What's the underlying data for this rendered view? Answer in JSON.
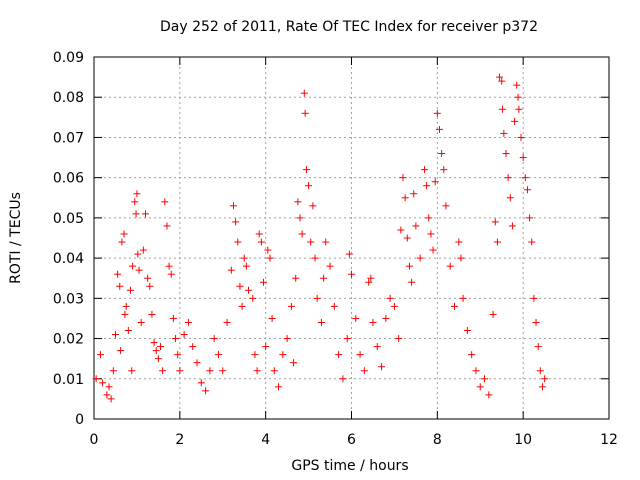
{
  "chart_data": {
    "type": "scatter",
    "title": "Day 252 of 2011, Rate Of TEC Index for receiver p372",
    "xlabel": "GPS time / hours",
    "ylabel": "ROTI / TECUs",
    "xlim": [
      0,
      12
    ],
    "ylim": [
      0,
      0.09
    ],
    "xticks": [
      0,
      2,
      4,
      6,
      8,
      10,
      12
    ],
    "yticks": [
      0,
      0.01,
      0.02,
      0.03,
      0.04,
      0.05,
      0.06,
      0.07,
      0.08,
      0.09
    ],
    "xtick_labels": [
      "0",
      "2",
      "4",
      "6",
      "8",
      "10",
      "12"
    ],
    "ytick_labels": [
      "0",
      "0.01",
      "0.02",
      "0.03",
      "0.04",
      "0.05",
      "0.06",
      "0.07",
      "0.08",
      "0.09"
    ],
    "grid": true,
    "marker": "+",
    "color": "#ff0000",
    "x_range_of_points": [
      0.0,
      10.5
    ],
    "points": [
      [
        0.05,
        0.01
      ],
      [
        0.15,
        0.016
      ],
      [
        0.2,
        0.009
      ],
      [
        0.3,
        0.006
      ],
      [
        0.35,
        0.008
      ],
      [
        0.4,
        0.005
      ],
      [
        0.45,
        0.012
      ],
      [
        0.5,
        0.021
      ],
      [
        0.55,
        0.036
      ],
      [
        0.6,
        0.033
      ],
      [
        0.62,
        0.017
      ],
      [
        0.65,
        0.044
      ],
      [
        0.7,
        0.046
      ],
      [
        0.72,
        0.026
      ],
      [
        0.75,
        0.028
      ],
      [
        0.8,
        0.022
      ],
      [
        0.85,
        0.032
      ],
      [
        0.88,
        0.012
      ],
      [
        0.9,
        0.038
      ],
      [
        0.95,
        0.054
      ],
      [
        0.98,
        0.051
      ],
      [
        1.0,
        0.056
      ],
      [
        1.02,
        0.041
      ],
      [
        1.05,
        0.037
      ],
      [
        1.1,
        0.024
      ],
      [
        1.15,
        0.042
      ],
      [
        1.2,
        0.051
      ],
      [
        1.25,
        0.035
      ],
      [
        1.3,
        0.033
      ],
      [
        1.35,
        0.026
      ],
      [
        1.4,
        0.019
      ],
      [
        1.45,
        0.017
      ],
      [
        1.5,
        0.015
      ],
      [
        1.55,
        0.018
      ],
      [
        1.6,
        0.012
      ],
      [
        1.65,
        0.054
      ],
      [
        1.7,
        0.048
      ],
      [
        1.75,
        0.038
      ],
      [
        1.8,
        0.036
      ],
      [
        1.85,
        0.025
      ],
      [
        1.9,
        0.02
      ],
      [
        1.95,
        0.016
      ],
      [
        2.0,
        0.012
      ],
      [
        2.1,
        0.021
      ],
      [
        2.2,
        0.024
      ],
      [
        2.3,
        0.018
      ],
      [
        2.4,
        0.014
      ],
      [
        2.5,
        0.009
      ],
      [
        2.6,
        0.007
      ],
      [
        2.7,
        0.012
      ],
      [
        2.8,
        0.02
      ],
      [
        2.9,
        0.016
      ],
      [
        3.0,
        0.012
      ],
      [
        3.1,
        0.024
      ],
      [
        3.2,
        0.037
      ],
      [
        3.25,
        0.053
      ],
      [
        3.3,
        0.049
      ],
      [
        3.35,
        0.044
      ],
      [
        3.4,
        0.033
      ],
      [
        3.45,
        0.028
      ],
      [
        3.5,
        0.04
      ],
      [
        3.55,
        0.038
      ],
      [
        3.6,
        0.032
      ],
      [
        3.7,
        0.03
      ],
      [
        3.75,
        0.016
      ],
      [
        3.8,
        0.012
      ],
      [
        3.85,
        0.046
      ],
      [
        3.9,
        0.044
      ],
      [
        3.95,
        0.034
      ],
      [
        4.0,
        0.018
      ],
      [
        4.05,
        0.042
      ],
      [
        4.1,
        0.04
      ],
      [
        4.15,
        0.025
      ],
      [
        4.2,
        0.012
      ],
      [
        4.3,
        0.008
      ],
      [
        4.4,
        0.016
      ],
      [
        4.5,
        0.02
      ],
      [
        4.6,
        0.028
      ],
      [
        4.65,
        0.014
      ],
      [
        4.7,
        0.035
      ],
      [
        4.75,
        0.054
      ],
      [
        4.8,
        0.05
      ],
      [
        4.85,
        0.046
      ],
      [
        4.9,
        0.081
      ],
      [
        4.92,
        0.076
      ],
      [
        4.95,
        0.062
      ],
      [
        5.0,
        0.058
      ],
      [
        5.05,
        0.044
      ],
      [
        5.1,
        0.053
      ],
      [
        5.15,
        0.04
      ],
      [
        5.2,
        0.03
      ],
      [
        5.3,
        0.024
      ],
      [
        5.35,
        0.035
      ],
      [
        5.4,
        0.044
      ],
      [
        5.5,
        0.038
      ],
      [
        5.6,
        0.028
      ],
      [
        5.7,
        0.016
      ],
      [
        5.8,
        0.01
      ],
      [
        5.9,
        0.02
      ],
      [
        5.95,
        0.041
      ],
      [
        6.0,
        0.036
      ],
      [
        6.1,
        0.025
      ],
      [
        6.2,
        0.016
      ],
      [
        6.3,
        0.012
      ],
      [
        6.4,
        0.034
      ],
      [
        6.45,
        0.035
      ],
      [
        6.5,
        0.024
      ],
      [
        6.6,
        0.018
      ],
      [
        6.7,
        0.013
      ],
      [
        6.8,
        0.025
      ],
      [
        6.9,
        0.03
      ],
      [
        7.0,
        0.028
      ],
      [
        7.1,
        0.02
      ],
      [
        7.15,
        0.047
      ],
      [
        7.2,
        0.06
      ],
      [
        7.25,
        0.055
      ],
      [
        7.3,
        0.045
      ],
      [
        7.35,
        0.038
      ],
      [
        7.4,
        0.034
      ],
      [
        7.45,
        0.056
      ],
      [
        7.5,
        0.048
      ],
      [
        7.6,
        0.04
      ],
      [
        7.7,
        0.062
      ],
      [
        7.75,
        0.058
      ],
      [
        7.8,
        0.05
      ],
      [
        7.85,
        0.046
      ],
      [
        7.9,
        0.042
      ],
      [
        7.95,
        0.059
      ],
      [
        8.0,
        0.076
      ],
      [
        8.05,
        0.072
      ],
      [
        8.1,
        0.066
      ],
      [
        8.15,
        0.062
      ],
      [
        8.2,
        0.053
      ],
      [
        8.3,
        0.038
      ],
      [
        8.4,
        0.028
      ],
      [
        8.5,
        0.044
      ],
      [
        8.55,
        0.04
      ],
      [
        8.6,
        0.03
      ],
      [
        8.7,
        0.022
      ],
      [
        8.8,
        0.016
      ],
      [
        8.9,
        0.012
      ],
      [
        9.0,
        0.008
      ],
      [
        9.1,
        0.01
      ],
      [
        9.2,
        0.006
      ],
      [
        9.3,
        0.026
      ],
      [
        9.35,
        0.049
      ],
      [
        9.4,
        0.044
      ],
      [
        9.45,
        0.085
      ],
      [
        9.5,
        0.084
      ],
      [
        9.52,
        0.077
      ],
      [
        9.55,
        0.071
      ],
      [
        9.6,
        0.066
      ],
      [
        9.65,
        0.06
      ],
      [
        9.7,
        0.055
      ],
      [
        9.75,
        0.048
      ],
      [
        9.8,
        0.074
      ],
      [
        9.85,
        0.083
      ],
      [
        9.88,
        0.08
      ],
      [
        9.9,
        0.077
      ],
      [
        9.95,
        0.07
      ],
      [
        10.0,
        0.065
      ],
      [
        10.05,
        0.06
      ],
      [
        10.1,
        0.057
      ],
      [
        10.15,
        0.05
      ],
      [
        10.2,
        0.044
      ],
      [
        10.25,
        0.03
      ],
      [
        10.3,
        0.024
      ],
      [
        10.35,
        0.018
      ],
      [
        10.4,
        0.012
      ],
      [
        10.45,
        0.008
      ],
      [
        10.5,
        0.01
      ]
    ]
  }
}
